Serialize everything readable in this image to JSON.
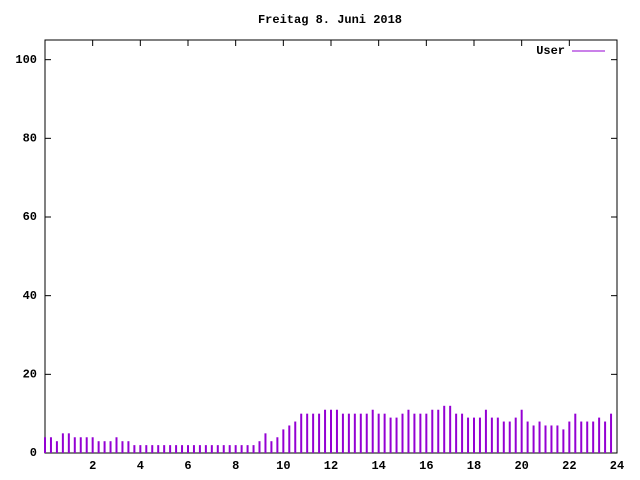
{
  "chart_data": {
    "type": "impulse",
    "title": "Freitag 8. Juni 2018",
    "x": [
      0,
      0.25,
      0.5,
      0.75,
      1,
      1.25,
      1.5,
      1.75,
      2,
      2.25,
      2.5,
      2.75,
      3,
      3.25,
      3.5,
      3.75,
      4,
      4.25,
      4.5,
      4.75,
      5,
      5.25,
      5.5,
      5.75,
      6,
      6.25,
      6.5,
      6.75,
      7,
      7.25,
      7.5,
      7.75,
      8,
      8.25,
      8.5,
      8.75,
      9,
      9.25,
      9.5,
      9.75,
      10,
      10.25,
      10.5,
      10.75,
      11,
      11.25,
      11.5,
      11.75,
      12,
      12.25,
      12.5,
      12.75,
      13,
      13.25,
      13.5,
      13.75,
      14,
      14.25,
      14.5,
      14.75,
      15,
      15.25,
      15.5,
      15.75,
      16,
      16.25,
      16.5,
      16.75,
      17,
      17.25,
      17.5,
      17.75,
      18,
      18.25,
      18.5,
      18.75,
      19,
      19.25,
      19.5,
      19.75,
      20,
      20.25,
      20.5,
      20.75,
      21,
      21.25,
      21.5,
      21.75,
      22,
      22.25,
      22.5,
      22.75,
      23,
      23.25,
      23.5,
      23.75
    ],
    "series": [
      {
        "name": "User",
        "color": "#9400d3",
        "values": [
          4,
          4,
          3,
          5,
          5,
          4,
          4,
          4,
          4,
          3,
          3,
          3,
          4,
          3,
          3,
          2,
          2,
          2,
          2,
          2,
          2,
          2,
          2,
          2,
          2,
          2,
          2,
          2,
          2,
          2,
          2,
          2,
          2,
          2,
          2,
          2,
          3,
          5,
          3,
          4,
          6,
          7,
          8,
          10,
          10,
          10,
          10,
          11,
          11,
          11,
          10,
          10,
          10,
          10,
          10,
          11,
          10,
          10,
          9,
          9,
          10,
          11,
          10,
          10,
          10,
          11,
          11,
          12,
          12,
          10,
          10,
          9,
          9,
          9,
          11,
          9,
          9,
          8,
          8,
          9,
          11,
          8,
          7,
          8,
          7,
          7,
          7,
          6,
          8,
          10,
          8,
          8,
          8,
          9,
          8,
          10
        ]
      }
    ],
    "xlim": [
      0,
      24
    ],
    "xticks": [
      2,
      4,
      6,
      8,
      10,
      12,
      14,
      16,
      18,
      20,
      22,
      24
    ],
    "ylim": [
      0,
      105
    ],
    "yticks": [
      0,
      20,
      40,
      60,
      80,
      100
    ],
    "legend": "top-right"
  }
}
